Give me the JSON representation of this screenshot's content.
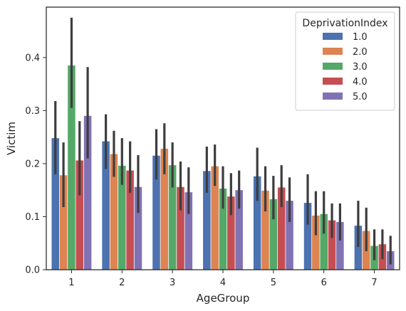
{
  "chart_data": {
    "type": "bar",
    "title": "",
    "xlabel": "AgeGroup",
    "ylabel": "Victim",
    "categories": [
      "1",
      "2",
      "3",
      "4",
      "5",
      "6",
      "7"
    ],
    "ylim": [
      0,
      0.495
    ],
    "yticks": [
      {
        "value": 0.0,
        "label": "0.0"
      },
      {
        "value": 0.1,
        "label": "0.1"
      },
      {
        "value": 0.2,
        "label": "0.2"
      },
      {
        "value": 0.3,
        "label": "0.3"
      },
      {
        "value": 0.4,
        "label": "0.4"
      }
    ],
    "grid": false,
    "legend": {
      "title": "DeprivationIndex",
      "placement": "top-right"
    },
    "series": [
      {
        "name": "1.0",
        "color": "#4c72b0",
        "values": [
          0.248,
          0.242,
          0.215,
          0.186,
          0.176,
          0.126,
          0.083
        ],
        "ci_low": [
          0.18,
          0.19,
          0.17,
          0.145,
          0.13,
          0.085,
          0.043
        ],
        "ci_high": [
          0.318,
          0.293,
          0.265,
          0.232,
          0.23,
          0.18,
          0.13
        ]
      },
      {
        "name": "2.0",
        "color": "#dd8452",
        "values": [
          0.178,
          0.218,
          0.228,
          0.195,
          0.149,
          0.102,
          0.073
        ],
        "ci_low": [
          0.118,
          0.175,
          0.18,
          0.158,
          0.11,
          0.065,
          0.035
        ],
        "ci_high": [
          0.24,
          0.262,
          0.276,
          0.236,
          0.195,
          0.148,
          0.117
        ]
      },
      {
        "name": "3.0",
        "color": "#55a868",
        "values": [
          0.385,
          0.196,
          0.197,
          0.153,
          0.133,
          0.105,
          0.045
        ],
        "ci_low": [
          0.305,
          0.16,
          0.155,
          0.115,
          0.095,
          0.068,
          0.018
        ],
        "ci_high": [
          0.475,
          0.248,
          0.24,
          0.195,
          0.177,
          0.148,
          0.076
        ]
      },
      {
        "name": "4.0",
        "color": "#c44e52",
        "values": [
          0.206,
          0.187,
          0.156,
          0.138,
          0.155,
          0.093,
          0.048
        ],
        "ci_low": [
          0.14,
          0.145,
          0.112,
          0.103,
          0.118,
          0.06,
          0.02
        ],
        "ci_high": [
          0.28,
          0.242,
          0.204,
          0.182,
          0.197,
          0.125,
          0.076
        ]
      },
      {
        "name": "5.0",
        "color": "#8172b3",
        "values": [
          0.29,
          0.156,
          0.146,
          0.15,
          0.13,
          0.09,
          0.035
        ],
        "ci_low": [
          0.21,
          0.107,
          0.105,
          0.115,
          0.09,
          0.055,
          0.01
        ],
        "ci_high": [
          0.382,
          0.216,
          0.193,
          0.187,
          0.174,
          0.125,
          0.064
        ]
      }
    ]
  }
}
